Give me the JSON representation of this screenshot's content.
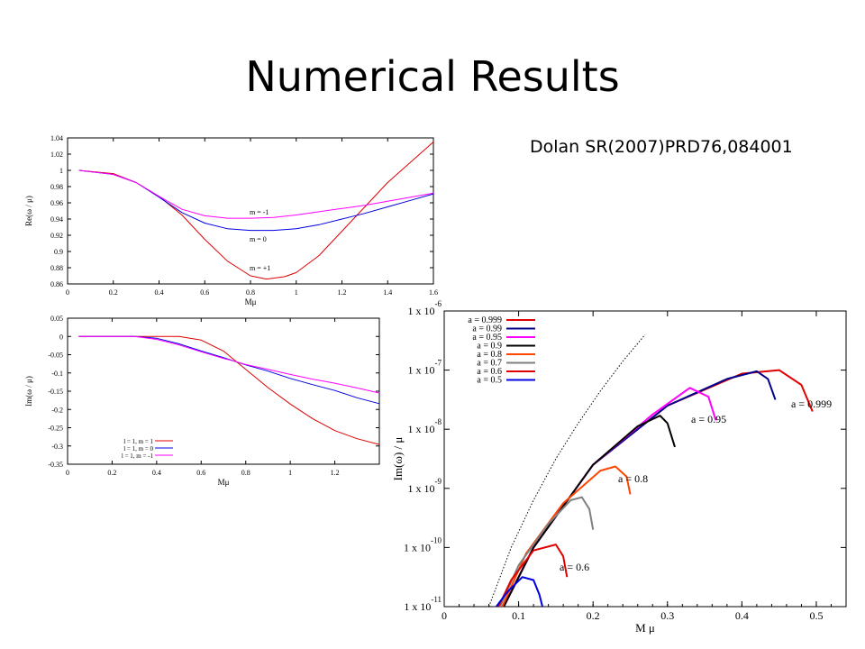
{
  "slide": {
    "title": "Numerical Results",
    "citation": "Dolan SR(2007)PRD76,084001"
  },
  "chart_data": [
    {
      "type": "line",
      "xlabel": "Mμ",
      "ylabel": "Re(ω / μ)",
      "xlim": [
        0,
        1.6
      ],
      "ylim": [
        0.86,
        1.04
      ],
      "xticks": [
        "0",
        "0.2",
        "0.4",
        "0.6",
        "0.8",
        "1",
        "1.2",
        "1.4",
        "1.6"
      ],
      "yticks": [
        "0.86",
        "0.88",
        "0.9",
        "0.92",
        "0.94",
        "0.96",
        "0.98",
        "1",
        "1.02",
        "1.04"
      ],
      "grid": false,
      "annotations": [
        "m = -1",
        "m = 0",
        "m = +1"
      ],
      "series": [
        {
          "color": "#e00000",
          "x": [
            0.05,
            0.2,
            0.3,
            0.4,
            0.5,
            0.6,
            0.7,
            0.8,
            0.87,
            0.95,
            1.0,
            1.1,
            1.2,
            1.3,
            1.4,
            1.5,
            1.6
          ],
          "y": [
            1.0,
            0.996,
            0.985,
            0.968,
            0.945,
            0.915,
            0.888,
            0.87,
            0.866,
            0.869,
            0.874,
            0.895,
            0.925,
            0.955,
            0.985,
            1.01,
            1.035
          ]
        },
        {
          "color": "#0000e0",
          "x": [
            0.05,
            0.2,
            0.3,
            0.4,
            0.5,
            0.6,
            0.7,
            0.8,
            0.9,
            1.0,
            1.1,
            1.2,
            1.3,
            1.4,
            1.5,
            1.6
          ],
          "y": [
            1.0,
            0.995,
            0.985,
            0.967,
            0.948,
            0.935,
            0.928,
            0.926,
            0.926,
            0.928,
            0.933,
            0.94,
            0.947,
            0.955,
            0.963,
            0.971
          ]
        },
        {
          "color": "#ff00ff",
          "x": [
            0.05,
            0.2,
            0.3,
            0.4,
            0.5,
            0.6,
            0.7,
            0.8,
            0.9,
            1.0,
            1.1,
            1.2,
            1.3,
            1.4,
            1.5,
            1.6
          ],
          "y": [
            1.0,
            0.995,
            0.985,
            0.968,
            0.952,
            0.944,
            0.941,
            0.941,
            0.942,
            0.945,
            0.949,
            0.953,
            0.957,
            0.962,
            0.967,
            0.972
          ]
        }
      ]
    },
    {
      "type": "line",
      "xlabel": "Mμ",
      "ylabel": "Im(ω / μ)",
      "xlim": [
        0,
        1.4
      ],
      "ylim": [
        -0.35,
        0.05
      ],
      "xticks": [
        "0",
        "0.2",
        "0.4",
        "0.6",
        "0.8",
        "1",
        "1.2"
      ],
      "yticks": [
        "0.05",
        "0",
        "-0.05",
        "-0.1",
        "-0.15",
        "-0.2",
        "-0.25",
        "-0.3",
        "-0.35"
      ],
      "grid": false,
      "legend": "bottom-left",
      "series": [
        {
          "name": "l = 1, m = 1",
          "color": "#e00000",
          "x": [
            0.05,
            0.3,
            0.5,
            0.6,
            0.7,
            0.75,
            0.8,
            0.9,
            1.0,
            1.1,
            1.2,
            1.3,
            1.4
          ],
          "y": [
            0,
            0,
            0,
            -0.01,
            -0.04,
            -0.065,
            -0.09,
            -0.14,
            -0.185,
            -0.225,
            -0.258,
            -0.28,
            -0.296
          ]
        },
        {
          "name": "l = 1, m = 0",
          "color": "#0000e0",
          "x": [
            0.05,
            0.3,
            0.4,
            0.5,
            0.6,
            0.7,
            0.75,
            0.8,
            0.9,
            1.0,
            1.1,
            1.2,
            1.3,
            1.4
          ],
          "y": [
            0,
            0,
            -0.005,
            -0.02,
            -0.04,
            -0.058,
            -0.068,
            -0.078,
            -0.095,
            -0.115,
            -0.132,
            -0.148,
            -0.168,
            -0.184
          ]
        },
        {
          "name": "l = 1, m = -1",
          "color": "#ff00ff",
          "x": [
            0.05,
            0.3,
            0.4,
            0.5,
            0.6,
            0.7,
            0.75,
            0.8,
            0.9,
            1.0,
            1.1,
            1.2,
            1.3,
            1.4
          ],
          "y": [
            0,
            0,
            -0.008,
            -0.023,
            -0.042,
            -0.06,
            -0.068,
            -0.077,
            -0.09,
            -0.104,
            -0.117,
            -0.128,
            -0.141,
            -0.155
          ]
        }
      ]
    },
    {
      "type": "line",
      "xlabel": "M μ",
      "ylabel": "Im(ω) / μ",
      "xlim": [
        0,
        0.54
      ],
      "yscale": "log",
      "ylim": [
        1e-11,
        1e-06
      ],
      "xticks": [
        "0",
        "0.1",
        "0.2",
        "0.3",
        "0.4",
        "0.5"
      ],
      "yticks": [
        {
          "text": "1 x 10",
          "exp": "-6"
        },
        {
          "text": "1 x 10",
          "exp": "-7"
        },
        {
          "text": "1 x 10",
          "exp": "-8"
        },
        {
          "text": "1 x 10",
          "exp": "-9"
        },
        {
          "text": "1 x 10",
          "exp": "-10"
        },
        {
          "text": "1 x 10",
          "exp": "-11"
        }
      ],
      "legend": "top-left",
      "annotations": [
        "a = 0.999",
        "a = 0.95",
        "a = 0.8",
        "a = 0.6"
      ],
      "series": [
        {
          "name": "a = 0.999",
          "color": "#e00000",
          "x": [
            0.08,
            0.12,
            0.2,
            0.3,
            0.4,
            0.45,
            0.48,
            0.495
          ],
          "y": [
            -11,
            -10,
            -8.6,
            -7.6,
            -7.06,
            -7.0,
            -7.25,
            -7.7
          ]
        },
        {
          "name": "a = 0.99",
          "color": "#00008b",
          "x": [
            0.08,
            0.12,
            0.2,
            0.3,
            0.38,
            0.42,
            0.435,
            0.445
          ],
          "y": [
            -11,
            -10,
            -8.6,
            -7.6,
            -7.15,
            -7.02,
            -7.15,
            -7.5
          ]
        },
        {
          "name": "a = 0.95",
          "color": "#ff00ff",
          "x": [
            0.08,
            0.12,
            0.2,
            0.28,
            0.33,
            0.355,
            0.365
          ],
          "y": [
            -11,
            -10,
            -8.6,
            -7.75,
            -7.3,
            -7.45,
            -7.85
          ]
        },
        {
          "name": "a = 0.9",
          "color": "#000000",
          "x": [
            0.08,
            0.12,
            0.2,
            0.26,
            0.29,
            0.3,
            0.31
          ],
          "y": [
            -11,
            -10,
            -8.6,
            -7.95,
            -7.77,
            -7.9,
            -8.3
          ]
        },
        {
          "name": "a = 0.8",
          "color": "#ff4500",
          "x": [
            0.078,
            0.11,
            0.16,
            0.21,
            0.23,
            0.245,
            0.25
          ],
          "y": [
            -11,
            -10.1,
            -9.25,
            -8.7,
            -8.63,
            -8.8,
            -9.1
          ]
        },
        {
          "name": "a = 0.7",
          "color": "#808080",
          "x": [
            0.075,
            0.1,
            0.14,
            0.17,
            0.185,
            0.195,
            0.2
          ],
          "y": [
            -11,
            -10.3,
            -9.6,
            -9.2,
            -9.15,
            -9.35,
            -9.7
          ]
        },
        {
          "name": "a = 0.6",
          "color": "#e00000",
          "x": [
            0.073,
            0.09,
            0.12,
            0.15,
            0.16,
            0.165
          ],
          "y": [
            -11,
            -10.55,
            -10.05,
            -9.95,
            -10.15,
            -10.5
          ]
        },
        {
          "name": "a = 0.5",
          "color": "#0000e0",
          "x": [
            0.07,
            0.085,
            0.105,
            0.12,
            0.128,
            0.132
          ],
          "y": [
            -11,
            -10.75,
            -10.5,
            -10.55,
            -10.8,
            -11.0
          ]
        },
        {
          "color": "#000000",
          "dashed": true,
          "x": [
            0.06,
            0.09,
            0.12,
            0.15,
            0.18,
            0.21,
            0.24,
            0.27
          ],
          "y": [
            -11,
            -10,
            -9.2,
            -8.5,
            -7.9,
            -7.35,
            -6.85,
            -6.4
          ]
        }
      ]
    }
  ]
}
